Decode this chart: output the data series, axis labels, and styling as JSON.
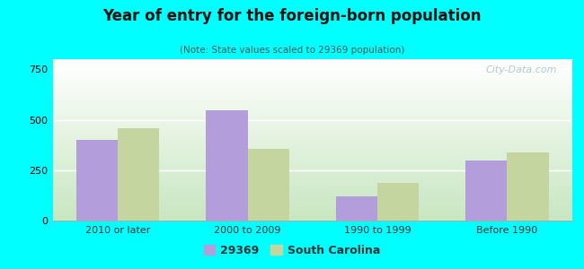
{
  "title": "Year of entry for the foreign-born population",
  "subtitle": "(Note: State values scaled to 29369 population)",
  "categories": [
    "2010 or later",
    "2000 to 2009",
    "1990 to 1999",
    "Before 1990"
  ],
  "values_29369": [
    400,
    545,
    120,
    300
  ],
  "values_sc": [
    460,
    355,
    185,
    340
  ],
  "color_29369": "#b39ddb",
  "color_sc": "#c5d5a0",
  "background_color": "#00ffff",
  "plot_bg_top": "#ffffff",
  "plot_bg_bottom": "#c8e6c0",
  "ylim": [
    0,
    800
  ],
  "yticks": [
    0,
    250,
    500,
    750
  ],
  "legend_label_1": "29369",
  "legend_label_2": "South Carolina",
  "bar_width": 0.32,
  "watermark": "City-Data.com"
}
